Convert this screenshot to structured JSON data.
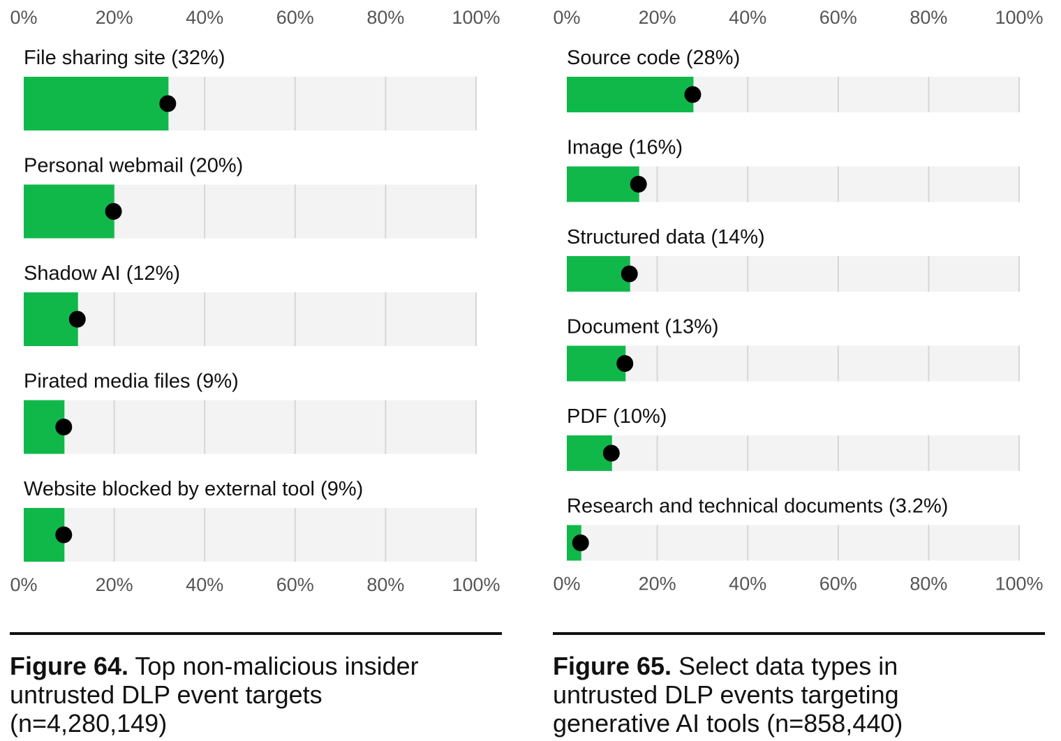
{
  "chart_data": [
    {
      "type": "bar",
      "orientation": "horizontal",
      "categories": [
        "File sharing site",
        "Personal webmail",
        "Shadow AI",
        "Pirated media files",
        "Website blocked by external tool"
      ],
      "labels": [
        "File sharing site (32%)",
        "Personal webmail (20%)",
        "Shadow AI (12%)",
        "Pirated media files (9%)",
        "Website blocked by external tool (9%)"
      ],
      "values": [
        32,
        20,
        12,
        9,
        9
      ],
      "xlim": [
        0,
        100
      ],
      "ticks": [
        "0%",
        "20%",
        "40%",
        "60%",
        "80%",
        "100%"
      ],
      "caption_bold": "Figure 64.",
      "caption_lines": [
        "Top non-malicious insider",
        "untrusted DLP event targets",
        "(n=4,280,149)"
      ]
    },
    {
      "type": "bar",
      "orientation": "horizontal",
      "categories": [
        "Source code",
        "Image",
        "Structured data",
        "Document",
        "PDF",
        "Research and technical documents"
      ],
      "labels": [
        "Source code (28%)",
        "Image (16%)",
        "Structured data (14%)",
        "Document (13%)",
        "PDF (10%)",
        "Research and technical documents (3.2%)"
      ],
      "values": [
        28,
        16,
        14,
        13,
        10,
        3.2
      ],
      "xlim": [
        0,
        100
      ],
      "ticks": [
        "0%",
        "20%",
        "40%",
        "60%",
        "80%",
        "100%"
      ],
      "caption_bold": "Figure 65.",
      "caption_lines": [
        "Select data types in",
        "untrusted DLP events targeting",
        "generative AI tools (n=858,440)"
      ]
    }
  ],
  "colors": {
    "bar": "#10b84a",
    "track": "#f3f3f3",
    "grid": "#d6d6d6",
    "dot": "#000000",
    "tick_text": "#555555"
  }
}
